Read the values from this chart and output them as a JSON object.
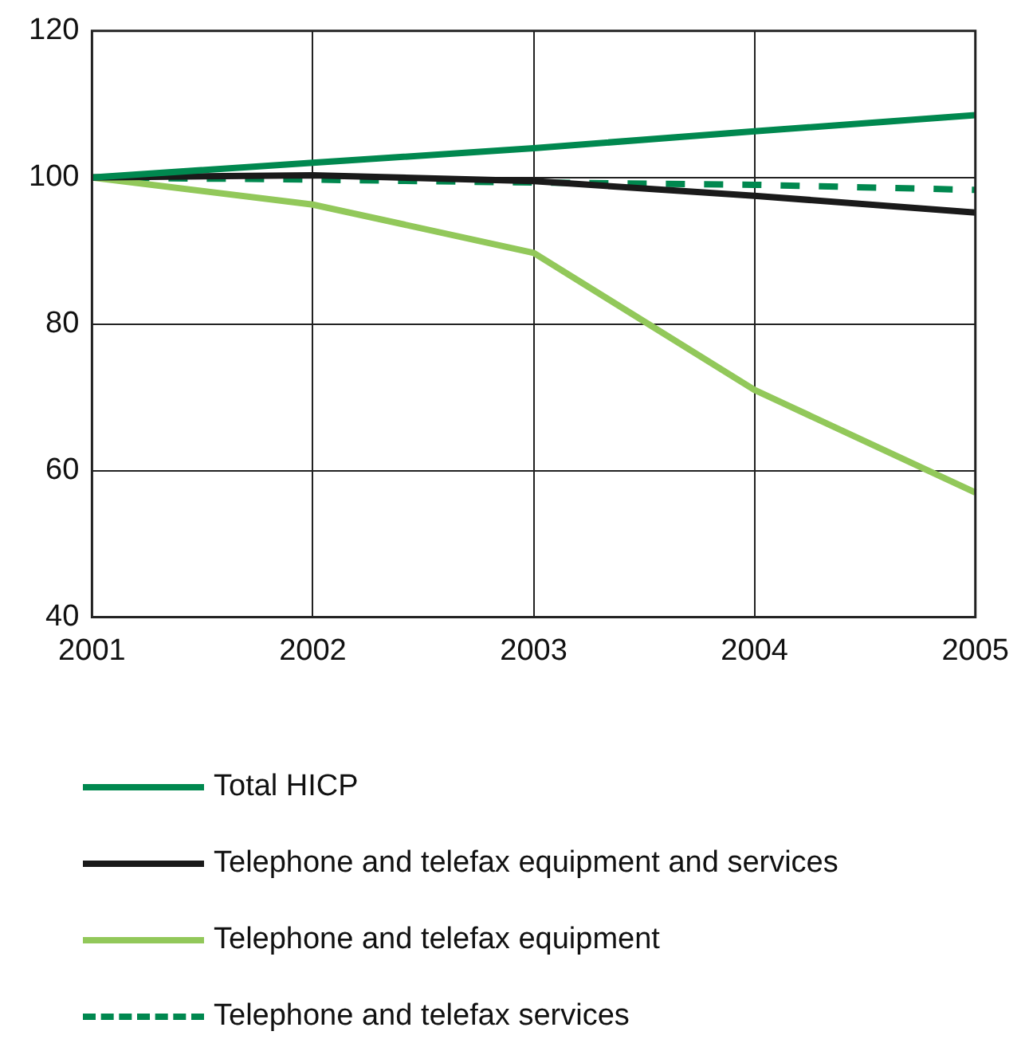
{
  "chart_data": {
    "type": "line",
    "categories": [
      "2001",
      "2002",
      "2003",
      "2004",
      "2005"
    ],
    "series": [
      {
        "name": "Total HICP",
        "color": "#00884f",
        "values": [
          100,
          102,
          104,
          106.3,
          108.5
        ]
      },
      {
        "name": "Telephone and telefax equipment and services",
        "color": "#1a1a1a",
        "values": [
          100,
          100.3,
          99.5,
          97.5,
          95.2
        ]
      },
      {
        "name": "Telephone and telefax equipment",
        "color": "#92c85a",
        "values": [
          100,
          96.3,
          89.7,
          71,
          57
        ]
      },
      {
        "name": "Telephone and telefax services",
        "color": "#00884f",
        "line_style": "dashed",
        "values": [
          100,
          99.7,
          99.3,
          99,
          98.3
        ]
      }
    ],
    "ylim": [
      40,
      120
    ],
    "yticks": [
      40,
      60,
      80,
      100,
      120
    ],
    "grid": true,
    "legend": "bottom",
    "marker": "none",
    "line_style": "solid"
  }
}
